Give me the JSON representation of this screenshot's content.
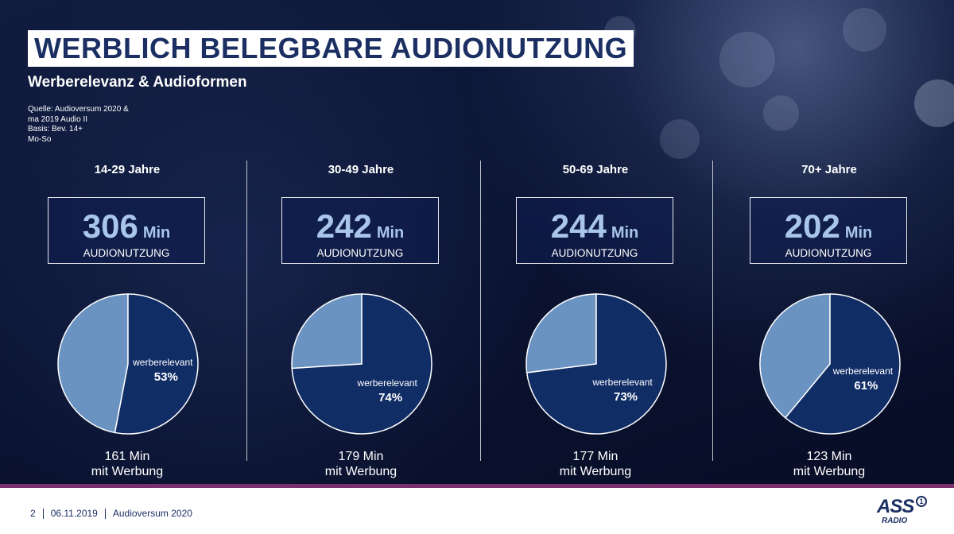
{
  "title": "WERBLICH BELEGBARE AUDIONUTZUNG",
  "subtitle": "Werberelevanz & Audioformen",
  "source": [
    "Quelle: Audioversum 2020 &",
    "ma 2019 Audio II",
    "Basis: Bev. 14+",
    "Mo-So"
  ],
  "colors": {
    "pie_relevant": "#112d66",
    "pie_other": "#6b93c2",
    "stat_number": "#a9c6ea",
    "accent_bar": "#7a2f6e",
    "title_text": "#1b2f63"
  },
  "groups": [
    {
      "age": "14-29 Jahre",
      "minutes": "306",
      "unit": "Min",
      "label": "AUDIONUTZUNG",
      "ad_minutes": "161 Min",
      "ad_label": "mit Werbung",
      "pie_label": "werberelevant",
      "pie_pct_text": "53%"
    },
    {
      "age": "30-49 Jahre",
      "minutes": "242",
      "unit": "Min",
      "label": "AUDIONUTZUNG",
      "ad_minutes": "179 Min",
      "ad_label": "mit Werbung",
      "pie_label": "werberelevant",
      "pie_pct_text": "74%"
    },
    {
      "age": "50-69 Jahre",
      "minutes": "244",
      "unit": "Min",
      "label": "AUDIONUTZUNG",
      "ad_minutes": "177 Min",
      "ad_label": "mit Werbung",
      "pie_label": "werberelevant",
      "pie_pct_text": "73%"
    },
    {
      "age": "70+ Jahre",
      "minutes": "202",
      "unit": "Min",
      "label": "AUDIONUTZUNG",
      "ad_minutes": "123 Min",
      "ad_label": "mit Werbung",
      "pie_label": "werberelevant",
      "pie_pct_text": "61%"
    }
  ],
  "chart_data": [
    {
      "type": "pie",
      "title": "14-29 Jahre",
      "categories": [
        "werberelevant",
        ""
      ],
      "values": [
        53,
        47
      ]
    },
    {
      "type": "pie",
      "title": "30-49 Jahre",
      "categories": [
        "werberelevant",
        ""
      ],
      "values": [
        74,
        26
      ]
    },
    {
      "type": "pie",
      "title": "50-69 Jahre",
      "categories": [
        "werberelevant",
        ""
      ],
      "values": [
        73,
        27
      ]
    },
    {
      "type": "pie",
      "title": "70+ Jahre",
      "categories": [
        "werberelevant",
        ""
      ],
      "values": [
        61,
        39
      ]
    }
  ],
  "footer": {
    "page": "2",
    "date": "06.11.2019",
    "source": "Audioversum 2020"
  },
  "logo": {
    "main": "ASS",
    "sub": "RADIO",
    "mark": "1",
    "icon": "ard-logo-icon"
  }
}
